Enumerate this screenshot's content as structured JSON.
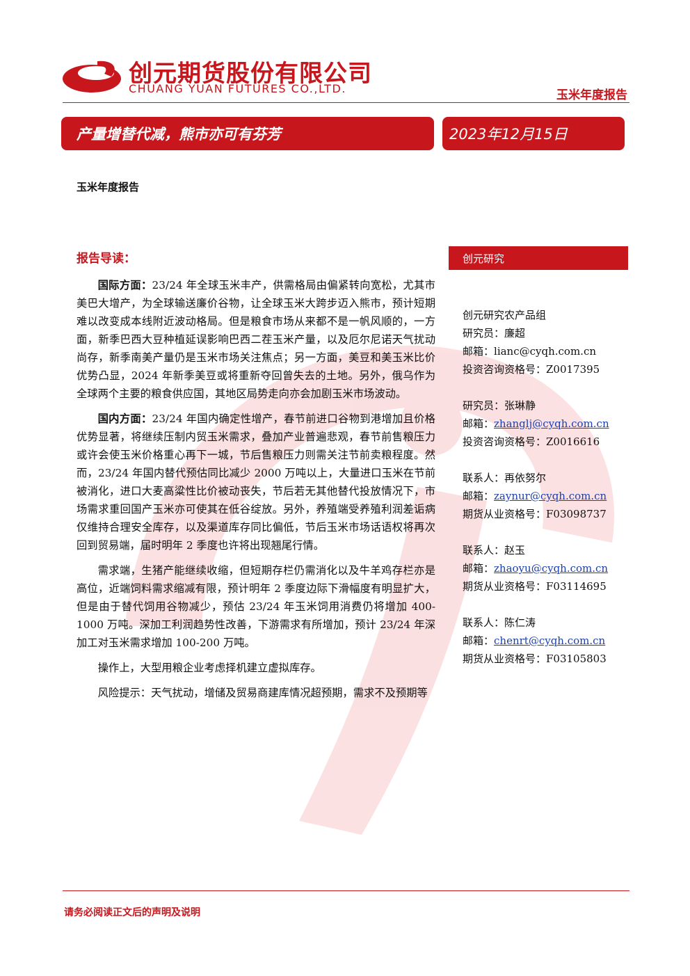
{
  "header": {
    "company_cn": "创元期货股份有限公司",
    "company_en": "CHUANG YUAN FUTURES CO.,LTD.",
    "report_type": "玉米年度报告"
  },
  "banner": {
    "title": "产量增替代减，熊市亦可有芬芳",
    "date": "2023年12月15日"
  },
  "subtitle": "玉米年度报告",
  "section_heading": "报告导读：",
  "paragraphs": [
    {
      "lead": "国际方面：",
      "text": "23/24 年全球玉米丰产，供需格局由偏紧转向宽松，尤其市美巴大增产，为全球输送廉价谷物，让全球玉米大跨步迈入熊市，预计短期难以改变成本线附近波动格局。但是粮食市场从来都不是一帆风顺的，一方面，新季巴西大豆种植延误影响巴西二茬玉米产量，以及厄尔尼诺天气扰动尚存，新季南美产量仍是玉米市场关注焦点；另一方面，美豆和美玉米比价优势凸显，2024 年新季美豆或将重新夺回曾失去的土地。另外，俄乌作为全球两个主要的粮食供应国，其地区局势走向亦会加剧玉米市场波动。"
    },
    {
      "lead": "国内方面：",
      "text": "23/24 年国内确定性增产，春节前进口谷物到港增加且价格优势显著，将继续压制内贸玉米需求，叠加产业普遍悲观，春节前售粮压力或许会使玉米价格重心再下一城，节后售粮压力则需关注节前卖粮程度。然而，23/24 年国内替代预估同比减少 2000 万吨以上，大量进口玉米在节前被消化，进口大麦高粱性比价被动丧失，节后若无其他替代投放情况下，市场需求重回国产玉米亦可使其在低谷绽放。另外，养殖端受养殖利润差诟病仅维持合理安全库存，以及渠道库存同比偏低，节后玉米市场话语权将再次回到贸易端，届时明年 2 季度也许将出现翘尾行情。"
    },
    {
      "text": "需求端，生猪产能继续收缩，但短期存栏仍需消化以及牛羊鸡存栏亦是高位，近端饲料需求缩减有限，预计明年 2 季度边际下滑幅度有明显扩大，但是由于替代饲用谷物减少，预估 23/24 年玉米饲用消费仍将增加 400-1000 万吨。深加工利润趋势性改善，下游需求有所增加，预计 23/24 年深加工对玉米需求增加 100-200 万吨。"
    },
    {
      "text": "操作上，大型用粮企业考虑择机建立虚拟库存。"
    },
    {
      "text": "风险提示：天气扰动，增储及贸易商建库情况超预期，需求不及预期等"
    }
  ],
  "sidebar": {
    "header": "创元研究",
    "group": "创元研究农产品组",
    "contacts": [
      {
        "role": "研究员：廉超",
        "email_label": "邮箱：",
        "email": "lianc@cyqh.com.cn",
        "license": "投资咨询资格号：Z0017395"
      },
      {
        "role": "研究员：张琳静",
        "email_label": "邮箱：",
        "email": "zhanglj@cyqh.com.cn",
        "license": "投资咨询资格号：Z0016616"
      },
      {
        "role": "联系人：再依努尔",
        "email_label": "邮箱：",
        "email": "zaynur@cyqh.com.cn",
        "license": "期货从业资格号：F03098737"
      },
      {
        "role": "联系人：赵玉",
        "email_label": "邮箱：",
        "email": "zhaoyu@cyqh.com.cn",
        "license": "期货从业资格号：F03114695"
      },
      {
        "role": "联系人：陈仁涛",
        "email_label": "邮箱：",
        "email": "chenrt@cyqh.com.cn",
        "license": "期货从业资格号：F03105803"
      }
    ]
  },
  "footer": "请务必阅读正文后的声明及说明"
}
